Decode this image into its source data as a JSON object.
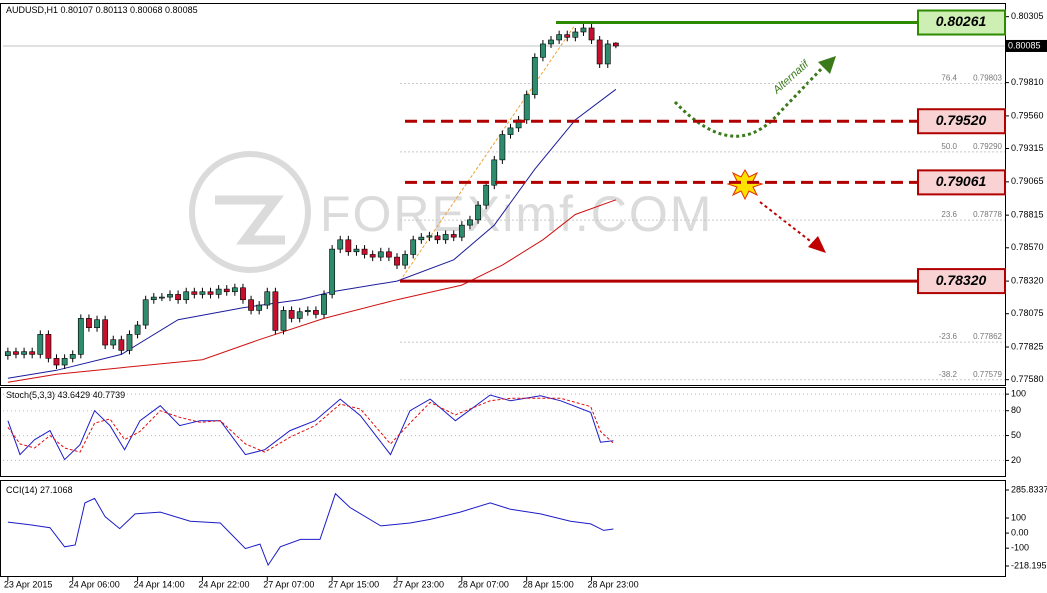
{
  "chart_data": [
    {
      "type": "candlestick",
      "symbol": "AUDUSD,H1",
      "watermark": "FOREXimf.COM",
      "annotation": "Alternatif",
      "up_color": "#2e8b6e",
      "down_color": "#c8102e",
      "candles": {
        "open": [
          0.7776,
          0.7779,
          0.7777,
          0.7779,
          0.7777,
          0.7792,
          0.7774,
          0.7769,
          0.7774,
          0.7777,
          0.7804,
          0.7797,
          0.7803,
          0.7784,
          0.7788,
          0.778,
          0.7792,
          0.7799,
          0.7818,
          0.782,
          0.782,
          0.7822,
          0.7818,
          0.7824,
          0.7822,
          0.7824,
          0.7822,
          0.7826,
          0.7824,
          0.7827,
          0.7818,
          0.781,
          0.7814,
          0.7824,
          0.7795,
          0.781,
          0.7804,
          0.7809,
          0.781,
          0.7807,
          0.7822,
          0.7856,
          0.7863,
          0.7854,
          0.7856,
          0.7852,
          0.785,
          0.7854,
          0.785,
          0.7844,
          0.7852,
          0.7863,
          0.7865,
          0.7866,
          0.7863,
          0.7867,
          0.7865,
          0.7874,
          0.7878,
          0.7889,
          0.7904,
          0.7923,
          0.7942,
          0.7947,
          0.7953,
          0.7972,
          0.8,
          0.801,
          0.8013,
          0.8017,
          0.8015,
          0.8019,
          0.8022,
          0.8013,
          0.7995,
          0.80107
        ],
        "high": [
          0.7782,
          0.7782,
          0.7782,
          0.7782,
          0.7795,
          0.7795,
          0.7777,
          0.7777,
          0.778,
          0.7807,
          0.7807,
          0.7806,
          0.7806,
          0.7791,
          0.7791,
          0.7795,
          0.7802,
          0.7821,
          0.7823,
          0.7823,
          0.7825,
          0.7825,
          0.7827,
          0.7827,
          0.7827,
          0.7827,
          0.7829,
          0.7829,
          0.783,
          0.783,
          0.7821,
          0.7817,
          0.7827,
          0.7827,
          0.7813,
          0.7813,
          0.7812,
          0.7813,
          0.7813,
          0.7825,
          0.7859,
          0.7866,
          0.7866,
          0.7859,
          0.7859,
          0.7855,
          0.7857,
          0.7857,
          0.7853,
          0.7855,
          0.7866,
          0.7868,
          0.7869,
          0.7869,
          0.787,
          0.787,
          0.7877,
          0.7881,
          0.7892,
          0.7907,
          0.7926,
          0.7945,
          0.795,
          0.7956,
          0.7975,
          0.8003,
          0.8013,
          0.8016,
          0.802,
          0.802,
          0.8022,
          0.8025,
          0.8025,
          0.8016,
          0.8013,
          0.80113
        ],
        "low": [
          0.7773,
          0.7774,
          0.7774,
          0.7774,
          0.7774,
          0.7771,
          0.7766,
          0.7766,
          0.7771,
          0.7774,
          0.7794,
          0.7794,
          0.7781,
          0.7781,
          0.7777,
          0.7777,
          0.7789,
          0.7796,
          0.7815,
          0.7817,
          0.7817,
          0.7815,
          0.7815,
          0.7819,
          0.7819,
          0.7819,
          0.7819,
          0.7821,
          0.7821,
          0.7815,
          0.7807,
          0.7807,
          0.7811,
          0.7792,
          0.7792,
          0.7801,
          0.7801,
          0.7806,
          0.7804,
          0.7804,
          0.7819,
          0.7853,
          0.7851,
          0.7851,
          0.7849,
          0.7847,
          0.7847,
          0.7847,
          0.7841,
          0.7841,
          0.7849,
          0.786,
          0.7862,
          0.786,
          0.786,
          0.7862,
          0.7862,
          0.7871,
          0.7875,
          0.7886,
          0.7901,
          0.792,
          0.7939,
          0.7944,
          0.795,
          0.7969,
          0.7997,
          0.8007,
          0.801,
          0.8012,
          0.8012,
          0.8016,
          0.801,
          0.7992,
          0.7992,
          0.80068
        ],
        "close": [
          0.7779,
          0.7777,
          0.7779,
          0.7777,
          0.7792,
          0.7774,
          0.7769,
          0.7774,
          0.7777,
          0.7804,
          0.7797,
          0.7803,
          0.7784,
          0.7788,
          0.778,
          0.7792,
          0.7799,
          0.7818,
          0.782,
          0.782,
          0.7822,
          0.7818,
          0.7824,
          0.7822,
          0.7824,
          0.7822,
          0.7826,
          0.7824,
          0.7827,
          0.7818,
          0.781,
          0.7814,
          0.7824,
          0.7795,
          0.781,
          0.7804,
          0.7809,
          0.781,
          0.7807,
          0.7822,
          0.7856,
          0.7863,
          0.7854,
          0.7856,
          0.7852,
          0.785,
          0.7854,
          0.785,
          0.7844,
          0.7852,
          0.7863,
          0.7865,
          0.7866,
          0.7863,
          0.7867,
          0.7865,
          0.7874,
          0.7878,
          0.7889,
          0.7904,
          0.7923,
          0.7942,
          0.7947,
          0.7953,
          0.7972,
          0.8,
          0.801,
          0.8013,
          0.8017,
          0.8015,
          0.8019,
          0.8022,
          0.8013,
          0.7995,
          0.801,
          0.80085
        ]
      },
      "moving_averages": [
        {
          "color": "#1c1c9c",
          "x": [
            0,
            6,
            14,
            21,
            29,
            36,
            40,
            48,
            55,
            60,
            65,
            70,
            75
          ],
          "values": [
            0.7759,
            0.7765,
            0.7777,
            0.7803,
            0.7812,
            0.7818,
            0.7824,
            0.7832,
            0.7848,
            0.7874,
            0.7916,
            0.7953,
            0.7976
          ]
        },
        {
          "color": "#d01010",
          "x": [
            0,
            6,
            14,
            24,
            31,
            39,
            48,
            56,
            61,
            66,
            70,
            75
          ],
          "values": [
            0.7756,
            0.7762,
            0.7767,
            0.7773,
            0.7788,
            0.7804,
            0.7818,
            0.7829,
            0.7844,
            0.7863,
            0.7882,
            0.7893
          ]
        }
      ],
      "levels": [
        {
          "value": 0.80261,
          "color": "#2e8b00",
          "fill": "#cdefb4",
          "style": "solid"
        },
        {
          "value": {
            "value": 0.7952,
            "label": "0.79520"
          },
          "color": "#b00000",
          "fill": "#f9d3d3",
          "style": "dashed"
        },
        {
          "value": 0.79061,
          "color": "#b00000",
          "fill": "#f9d3d3",
          "style": "dashed"
        },
        {
          "value": {
            "value": 0.7832,
            "label": "0.78320"
          },
          "color": "#b00000",
          "fill": "#f9d3d3",
          "style": "solid"
        }
      ],
      "fibonacci": [
        {
          "ratio": 76.4,
          "price": 0.79803
        },
        {
          "ratio": {
            "value": 50,
            "label": "50.0"
          },
          "price": {
            "value": 0.7929,
            "label": "0.79290"
          }
        },
        {
          "ratio": 23.6,
          "price": 0.78778
        },
        {
          "ratio": -23.6,
          "price": 0.77862
        },
        {
          "ratio": -38.2,
          "price": 0.77579
        }
      ],
      "xlim": [
        -0.6,
        123
      ],
      "ylim": [
        0.7754,
        0.8037
      ],
      "yticks": [
        0.80305,
        {
          "value": 0.7981,
          "label": "0.79810"
        },
        {
          "value": 0.7956,
          "label": "0.79560"
        },
        0.79315,
        0.79065,
        0.78815,
        {
          "value": 0.7857,
          "label": "0.78570"
        },
        {
          "value": 0.7832,
          "label": "0.78320"
        },
        0.78075,
        0.77825,
        {
          "value": 0.7758,
          "label": "0.77580"
        }
      ],
      "xticks": [
        {
          "value": 0,
          "label": "23 Apr 2015"
        },
        {
          "value": 8,
          "label": "24 Apr 06:00"
        },
        {
          "value": 16,
          "label": "24 Apr 14:00"
        },
        {
          "value": 24,
          "label": "24 Apr 22:00"
        },
        {
          "value": 32,
          "label": "27 Apr 07:00"
        },
        {
          "value": 40,
          "label": "27 Apr 15:00"
        },
        {
          "value": 48,
          "label": "27 Apr 23:00"
        },
        {
          "value": 56,
          "label": "28 Apr 07:00"
        },
        {
          "value": 64,
          "label": "28 Apr 15:00"
        },
        {
          "value": 72,
          "label": "28 Apr 23:00"
        }
      ]
    },
    {
      "type": "line",
      "title": "Stoch(5,3,3)",
      "ylim": [
        0,
        105
      ],
      "yticks": [
        100,
        80,
        50,
        20
      ],
      "series": [
        {
          "color": "#1c1cc8",
          "style": "solid",
          "x": [
            0,
            1.5,
            3.3,
            5.2,
            7,
            8.9,
            10.7,
            12.6,
            14.4,
            16.3,
            18.8,
            21.2,
            23.7,
            26.2,
            29.3,
            31.7,
            34.8,
            37.9,
            41,
            43.5,
            47.2,
            49.6,
            52.1,
            55.2,
            59.5,
            62,
            65.7,
            68.2,
            71.9,
            73.1,
            74.7
          ],
          "values": [
            68,
            27,
            45,
            56,
            21,
            39,
            80,
            62,
            33,
            68,
            86,
            62,
            68,
            68,
            27,
            33,
            56,
            68,
            94,
            74,
            27,
            80,
            94,
            68,
            99,
            92,
            98,
            92,
            78,
            42,
            43.6429
          ]
        },
        {
          "color": "#e01010",
          "style": "dashed",
          "x": [
            0,
            1.5,
            3.3,
            5.2,
            7,
            8.9,
            10.7,
            12.6,
            14.4,
            16.3,
            18.8,
            21.2,
            23.7,
            26.2,
            29.3,
            31.7,
            34.8,
            37.9,
            41,
            43.5,
            47.2,
            49.6,
            52.1,
            55.2,
            59.5,
            62,
            65.7,
            68.2,
            71.9,
            73.1,
            74.7
          ],
          "values": [
            60,
            40,
            35,
            50,
            35,
            30,
            65,
            70,
            45,
            55,
            80,
            72,
            66,
            68,
            40,
            30,
            48,
            62,
            88,
            82,
            40,
            65,
            90,
            75,
            92,
            95,
            95,
            95,
            85,
            55,
            40.7739
          ]
        }
      ]
    },
    {
      "type": "line",
      "title": "CCI(14)",
      "ylim": [
        -218.195,
        285.8337
      ],
      "yticks": [
        285.8337,
        100,
        {
          "value": 0,
          "label": "0.00"
        },
        -100,
        -218.195
      ],
      "series": [
        {
          "color": "#1c1cc8",
          "style": "solid",
          "x": [
            0,
            2.7,
            5.2,
            7,
            8.3,
            9.5,
            10.7,
            12,
            13.8,
            15.7,
            18.8,
            22.5,
            26.2,
            29.3,
            31.1,
            32.1,
            33.6,
            36.1,
            38.5,
            40.4,
            42.2,
            46,
            49.6,
            52.1,
            55.8,
            59.5,
            62,
            65.7,
            69.4,
            71.9,
            73.5,
            74.7
          ],
          "values": [
            73,
            55,
            36,
            -91,
            -79,
            200,
            230,
            109,
            30,
            127,
            139,
            79,
            67,
            -103,
            -73,
            -212,
            -91,
            -42,
            -42,
            261,
            170,
            48,
            67,
            91,
            139,
            200,
            158,
            127,
            79,
            61,
            18,
            27.1068
          ]
        }
      ]
    }
  ]
}
